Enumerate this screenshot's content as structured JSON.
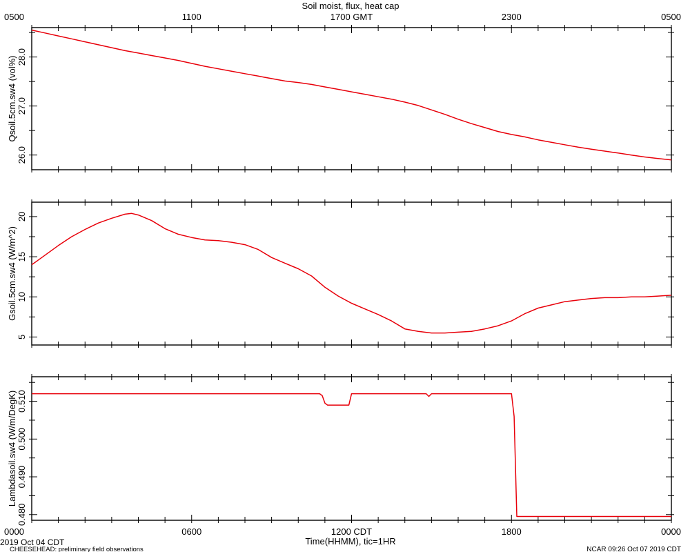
{
  "title": "Soil moist, flux, heat cap",
  "top_axis": {
    "labels": [
      "0500",
      "1100",
      "1700 GMT",
      "2300",
      "0500"
    ]
  },
  "bottom_axis": {
    "labels": [
      "0000",
      "0600",
      "1200 CDT",
      "1800",
      "0000"
    ],
    "xlabel": "Time(HHMM), tic=1HR"
  },
  "footer": {
    "date": "2019 Oct 04 CDT",
    "project": "CHEESEHEAD: preliminary field observations",
    "stamp": "NCAR 09:26 Oct 07 2019 CDT"
  },
  "colors": {
    "line": "#e8000a",
    "axis": "#000000"
  },
  "chart_data": [
    {
      "type": "line",
      "ylabel": "Qsoil.5cm.sw4 (vol%)",
      "ylim": [
        25.7,
        28.6
      ],
      "yticks": [
        26.0,
        27.0,
        28.0
      ],
      "ytick_labels": [
        "26.0",
        "27.0",
        "28.0"
      ],
      "series": [
        {
          "x": [
            0,
            0.5,
            1,
            1.5,
            2,
            2.5,
            3,
            3.5,
            4,
            4.5,
            5,
            5.5,
            6,
            6.5,
            7,
            7.5,
            8,
            8.5,
            9,
            9.5,
            10,
            10.5,
            11,
            11.5,
            12,
            12.5,
            13,
            13.5,
            14,
            14.5,
            15,
            15.5,
            16,
            16.5,
            17,
            17.5,
            18,
            18.5,
            19,
            19.5,
            20,
            20.5,
            21,
            21.5,
            22,
            22.5,
            23,
            23.5,
            24
          ],
          "y": [
            28.55,
            28.49,
            28.43,
            28.37,
            28.31,
            28.25,
            28.19,
            28.13,
            28.08,
            28.03,
            27.98,
            27.93,
            27.87,
            27.81,
            27.76,
            27.71,
            27.66,
            27.61,
            27.56,
            27.51,
            27.48,
            27.44,
            27.39,
            27.34,
            27.29,
            27.24,
            27.19,
            27.14,
            27.08,
            27.01,
            26.92,
            26.83,
            26.73,
            26.64,
            26.56,
            26.48,
            26.42,
            26.37,
            26.31,
            26.26,
            26.21,
            26.16,
            26.12,
            26.08,
            26.04,
            26.0,
            25.96,
            25.93,
            25.9
          ]
        }
      ]
    },
    {
      "type": "line",
      "ylabel": "Gsoil.5cm.sw4 (W/m^2)",
      "ylim": [
        4.0,
        21.8
      ],
      "yticks": [
        5,
        10,
        15,
        20
      ],
      "ytick_labels": [
        "5",
        "10",
        "15",
        "20"
      ],
      "series": [
        {
          "x": [
            0,
            0.5,
            1,
            1.5,
            2,
            2.5,
            3,
            3.5,
            3.75,
            4,
            4.5,
            5,
            5.5,
            6,
            6.5,
            7,
            7.5,
            8,
            8.5,
            9,
            9.5,
            10,
            10.5,
            11,
            11.5,
            12,
            12.5,
            13,
            13.5,
            14,
            14.5,
            15,
            15.5,
            16,
            16.5,
            17,
            17.5,
            18,
            18.5,
            19,
            19.5,
            20,
            20.5,
            21,
            21.5,
            22,
            22.5,
            23,
            23.5,
            24
          ],
          "y": [
            14.0,
            15.2,
            16.4,
            17.5,
            18.4,
            19.2,
            19.8,
            20.3,
            20.4,
            20.2,
            19.5,
            18.5,
            17.8,
            17.4,
            17.1,
            17.0,
            16.8,
            16.5,
            15.9,
            14.9,
            14.2,
            13.5,
            12.6,
            11.2,
            10.1,
            9.2,
            8.5,
            7.8,
            7.0,
            6.0,
            5.7,
            5.5,
            5.5,
            5.6,
            5.7,
            6.0,
            6.4,
            7.0,
            7.9,
            8.6,
            9.0,
            9.4,
            9.6,
            9.8,
            9.9,
            9.9,
            10.0,
            10.0,
            10.1,
            10.2
          ]
        }
      ]
    },
    {
      "type": "line",
      "ylabel": "Lambdasoil.sw4 (W/m/DegK)",
      "ylim": [
        0.4785,
        0.5165
      ],
      "yticks": [
        0.48,
        0.49,
        0.5,
        0.51
      ],
      "ytick_labels": [
        "0.480",
        "0.490",
        "0.500",
        "0.510"
      ],
      "series": [
        {
          "x": [
            0,
            10.8,
            10.9,
            11.0,
            11.1,
            11.9,
            12.0,
            14.8,
            14.9,
            15.0,
            15.1,
            15.3,
            18.0,
            18.05,
            18.1,
            18.2,
            24
          ],
          "y": [
            0.512,
            0.512,
            0.5115,
            0.5095,
            0.509,
            0.509,
            0.512,
            0.512,
            0.5113,
            0.512,
            0.512,
            0.512,
            0.512,
            0.509,
            0.506,
            0.4795,
            0.4795
          ]
        }
      ]
    }
  ]
}
